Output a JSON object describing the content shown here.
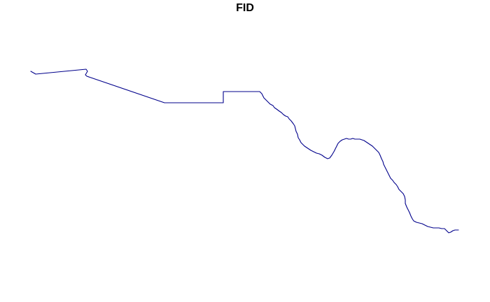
{
  "map": {
    "title": "FID",
    "line_color": "#00008b",
    "background_color": "#ffffff",
    "feature_count": 1,
    "geometry_type": "line"
  }
}
